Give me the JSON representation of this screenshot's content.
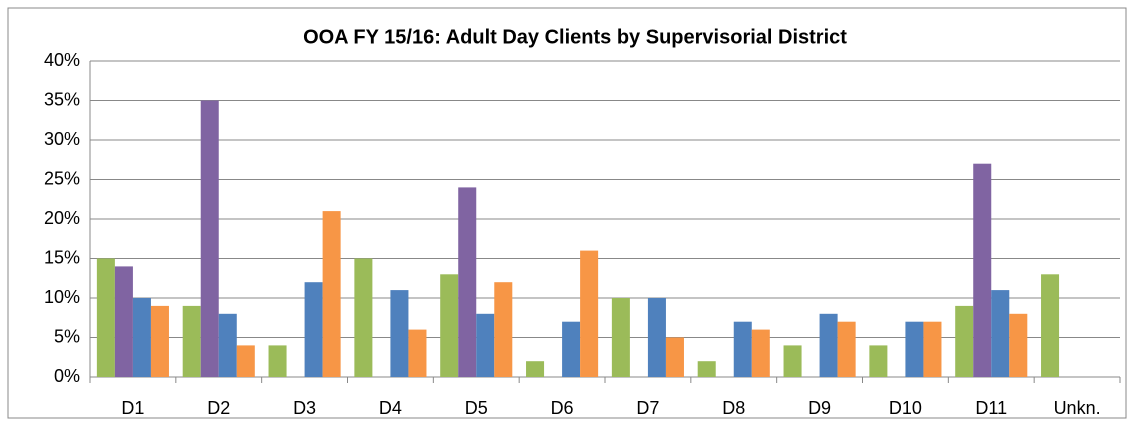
{
  "chart_data": {
    "type": "bar",
    "title": "OOA  FY 15/16: Adult Day Clients by Supervisorial District",
    "categories": [
      "D1",
      "D2",
      "D3",
      "D4",
      "D5",
      "D6",
      "D7",
      "D8",
      "D9",
      "D10",
      "D11",
      "Unkn."
    ],
    "series": [
      {
        "color": "#9bbb59",
        "values": [
          15,
          9,
          4,
          15,
          13,
          2,
          10,
          2,
          4,
          4,
          9,
          13
        ]
      },
      {
        "color": "#8064a2",
        "values": [
          14,
          35,
          0,
          0,
          24,
          0,
          0,
          0,
          0,
          0,
          27,
          0
        ]
      },
      {
        "color": "#4f81bd",
        "values": [
          10,
          8,
          12,
          11,
          8,
          7,
          10,
          7,
          8,
          7,
          11,
          0
        ]
      },
      {
        "color": "#f79646",
        "values": [
          9,
          4,
          21,
          6,
          12,
          16,
          5,
          6,
          7,
          7,
          8,
          0
        ]
      }
    ],
    "ylim": [
      0,
      40
    ],
    "yticks": [
      {
        "value": 0,
        "label": "0%"
      },
      {
        "value": 5,
        "label": "5%"
      },
      {
        "value": 10,
        "label": "10%"
      },
      {
        "value": 15,
        "label": "15%"
      },
      {
        "value": 20,
        "label": "20%"
      },
      {
        "value": 25,
        "label": "25%"
      },
      {
        "value": 30,
        "label": "30%"
      },
      {
        "value": 35,
        "label": "35%"
      },
      {
        "value": 40,
        "label": "40%"
      }
    ],
    "grid": true
  }
}
